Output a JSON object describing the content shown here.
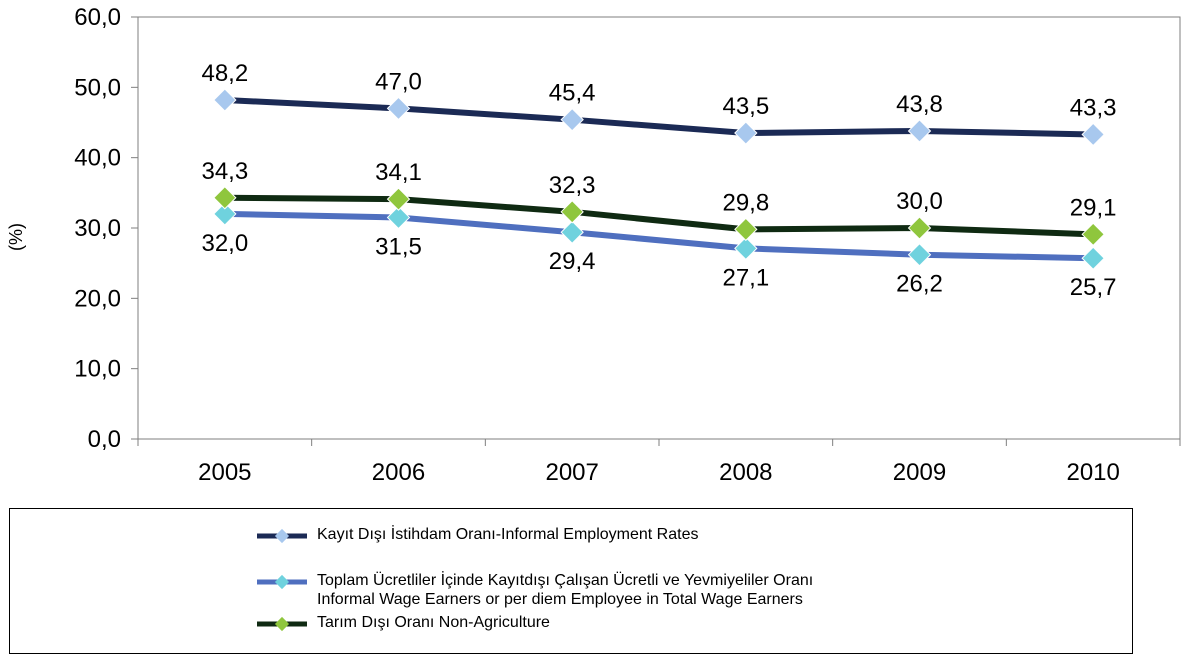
{
  "chart_data": {
    "type": "line",
    "categories": [
      "2005",
      "2006",
      "2007",
      "2008",
      "2009",
      "2010"
    ],
    "ylabel": "(%)",
    "ylim": [
      0,
      60
    ],
    "yticks": [
      "0,0",
      "10,0",
      "20,0",
      "30,0",
      "40,0",
      "50,0",
      "60,0"
    ],
    "grid": false,
    "legend_position": "bottom",
    "series": [
      {
        "name": "Kayıt Dışı İstihdam Oranı-Informal Employment Rates",
        "values": [
          48.2,
          47.0,
          45.4,
          43.5,
          43.8,
          43.3
        ],
        "labels": [
          "48,2",
          "47,0",
          "45,4",
          "43,5",
          "43,8",
          "43,3"
        ],
        "line_color": "#1b2a55",
        "marker_color": "#a8c8ee",
        "label_side": "above"
      },
      {
        "name": "Toplam Ücretliler İçinde Kayıtdışı Çalışan Ücretli ve Yevmiyeliler Oranı Informal Wage Earners or per diem Employee in Total Wage Earners",
        "name_lines": [
          "Toplam Ücretliler İçinde Kayıtdışı Çalışan Ücretli ve Yevmiyeliler Oranı",
          "Informal Wage Earners or per diem Employee in Total Wage Earners"
        ],
        "values": [
          32.0,
          31.5,
          29.4,
          27.1,
          26.2,
          25.7
        ],
        "labels": [
          "32,0",
          "31,5",
          "29,4",
          "27,1",
          "26,2",
          "25,7"
        ],
        "line_color": "#4f6fbf",
        "marker_color": "#6fd2de",
        "label_side": "below"
      },
      {
        "name": "Tarım Dışı Oranı Non-Agriculture",
        "values": [
          34.3,
          34.1,
          32.3,
          29.8,
          30.0,
          29.1
        ],
        "labels": [
          "34,3",
          "34,1",
          "32,3",
          "29,8",
          "30,0",
          "29,1"
        ],
        "line_color": "#0f2a12",
        "marker_color": "#8fc63d",
        "label_side": "above"
      }
    ]
  }
}
